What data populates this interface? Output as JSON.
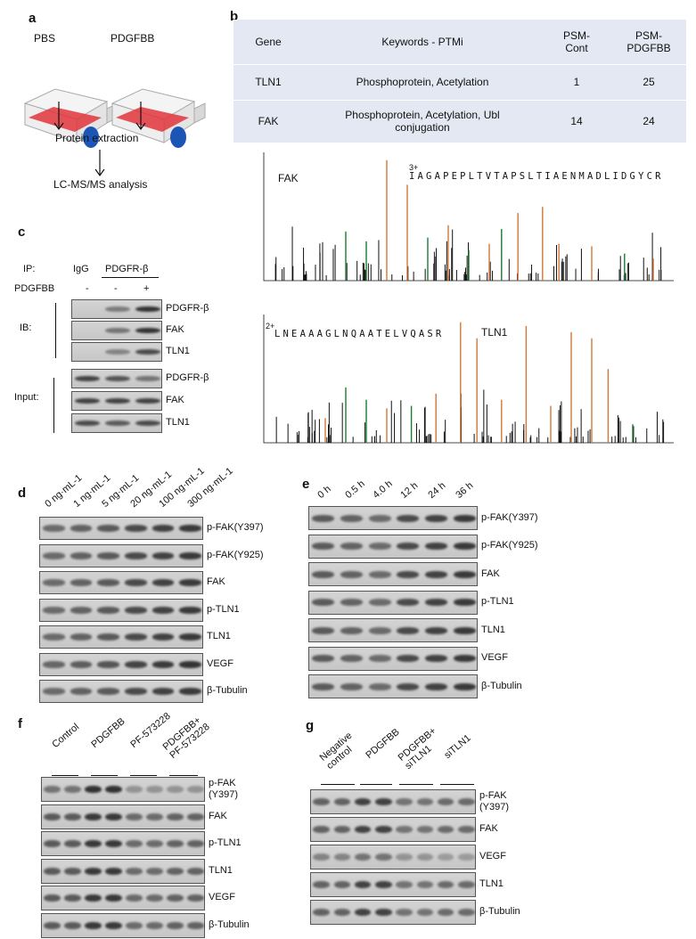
{
  "panels": {
    "a": "a",
    "b": "b",
    "c": "c",
    "d": "d",
    "e": "e",
    "f": "f",
    "g": "g"
  },
  "panel_a": {
    "flask_left": "PBS",
    "flask_right": "PDGFBB",
    "step1": "Protein extraction",
    "step2": "LC-MS/MS analysis"
  },
  "panel_b": {
    "table": {
      "headers": [
        "Gene",
        "Keywords -  PTMi",
        "PSM-\nCont",
        "PSM-\nPDGFBB"
      ],
      "rows": [
        {
          "gene": "TLN1",
          "keywords": "Phosphoprotein, Acetylation",
          "cont": "1",
          "pdgfbb": "25"
        },
        {
          "gene": "FAK",
          "keywords": "Phosphoprotein, Acetylation,      Ubl\nconjugation",
          "cont": "14",
          "pdgfbb": "24"
        }
      ]
    },
    "spectrum_fak": {
      "name": "FAK",
      "charge": "3+",
      "peptide": "IAGAPEPLTVTAPSLTIAENMADLIDGYCR"
    },
    "spectrum_tln1": {
      "name": "TLN1",
      "charge": "2+",
      "peptide": "LNEAAAGLNQAATELVQASR"
    },
    "colors": {
      "b_ion": "#1f7a2e",
      "y_ion": "#d2773a",
      "other": "#111111"
    }
  },
  "panel_c": {
    "ip_label": "IP:",
    "igg": "IgG",
    "ip_target": "PDGFR-β",
    "treat_label": "PDGFBB",
    "treat_signs": [
      "-",
      "-",
      "+"
    ],
    "ib_label": "IB:",
    "input_label": "Input:",
    "ib_rows": [
      "PDGFR-β",
      "FAK",
      "TLN1"
    ],
    "input_rows": [
      "PDGFR-β",
      "FAK",
      "TLN1"
    ]
  },
  "panel_d": {
    "lanes": [
      "0 ng·mL-1",
      "1 ng·mL-1",
      "5 ng·mL-1",
      "20 ng·mL-1",
      "100 ng·mL-1",
      "300 ng·mL-1"
    ],
    "rows": [
      "p-FAK(Y397)",
      "p-FAK(Y925)",
      "FAK",
      "p-TLN1",
      "TLN1",
      "VEGF",
      "β-Tubulin"
    ]
  },
  "panel_e": {
    "lanes": [
      "0 h",
      "0.5 h",
      "4.0 h",
      "12 h",
      "24 h",
      "36 h"
    ],
    "rows": [
      "p-FAK(Y397)",
      "p-FAK(Y925)",
      "FAK",
      "p-TLN1",
      "TLN1",
      "VEGF",
      "β-Tubulin"
    ]
  },
  "panel_f": {
    "groups": [
      "Control",
      "PDGFBB",
      "PF-573228",
      "PDGFBB+\nPF-573228"
    ],
    "rows": [
      "p-FAK\n(Y397)",
      "FAK",
      "p-TLN1",
      "TLN1",
      "VEGF",
      "β-Tubulin"
    ]
  },
  "panel_g": {
    "groups": [
      "Negative\ncontrol",
      "PDGFBB",
      "PDGFBB+\nsiTLN1",
      "siTLN1"
    ],
    "rows": [
      "p-FAK\n(Y397)",
      "FAK",
      "VEGF",
      "TLN1",
      "β-Tubulin"
    ]
  }
}
